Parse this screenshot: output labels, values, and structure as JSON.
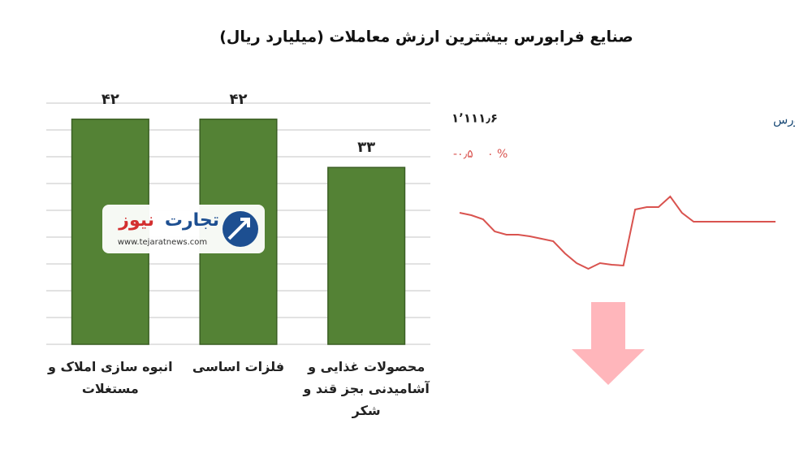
{
  "chart_data": [
    {
      "type": "bar",
      "title": "صنایع فرابورس بیشترین ارزش معاملات  (میلیارد ریال)",
      "categories": [
        "انبوه سازی املاک و مستغلات",
        "فلزات اساسی",
        "محصولات غذایی و آشامیدنی بجز قند و شکر"
      ],
      "values": [
        42,
        42,
        33
      ],
      "value_labels": [
        "۴۲",
        "۴۲",
        "۳۳"
      ],
      "color": "#548235",
      "ylim": [
        0,
        45
      ],
      "yticks": [
        0,
        5,
        10,
        15,
        20,
        25,
        30,
        35,
        40,
        45
      ],
      "grid": true
    },
    {
      "type": "line",
      "title": "کل فرابورس",
      "annotations": [
        "۱٬۱۱۱٫۶",
        "-۰٫۵",
        "۰ %"
      ],
      "color": "#d9534f",
      "ylim": [
        0,
        100
      ],
      "values": [
        78,
        75,
        70,
        55,
        51,
        51,
        49,
        46,
        43,
        28,
        16,
        9,
        16,
        14,
        13,
        82,
        85,
        85,
        98,
        78,
        67,
        67,
        67,
        67,
        67,
        67,
        67,
        67
      ]
    }
  ],
  "logo": {
    "brand_a": "تجارت",
    "brand_b": "نیوز",
    "url": "www.tejaratnews.com"
  }
}
